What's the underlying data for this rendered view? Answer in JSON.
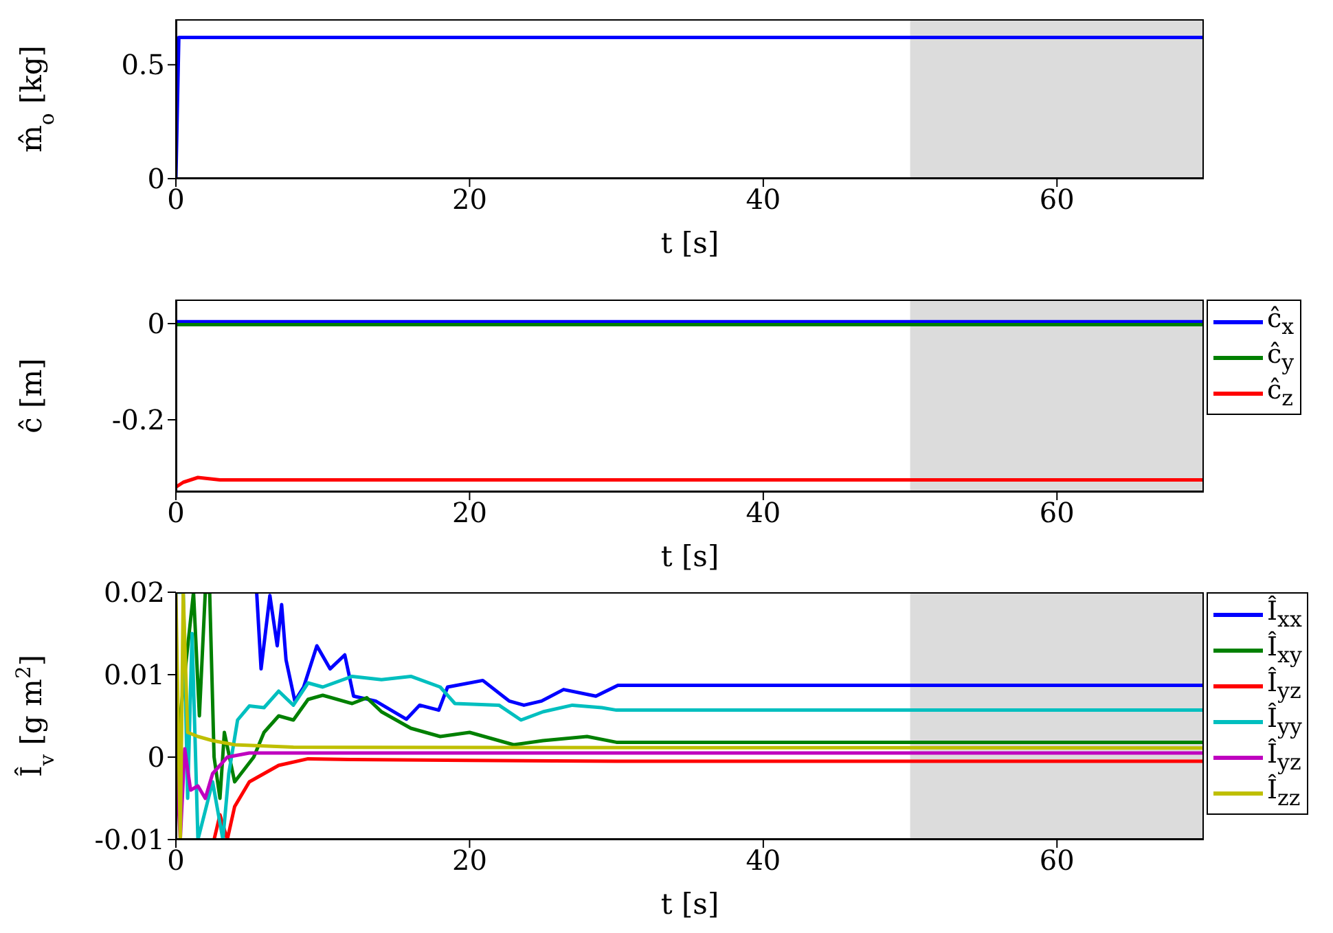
{
  "chart_data": [
    {
      "type": "line",
      "ylabel": "m̂$_{o}$ [kg]",
      "xlabel": "t [s]",
      "xlim": [
        0,
        70
      ],
      "xticks": [
        0,
        20,
        40,
        60
      ],
      "ylim": [
        0,
        0.7
      ],
      "yticks": [
        0,
        0.5
      ],
      "legend": false,
      "bands": [
        {
          "axis": "x",
          "from": 50,
          "to": 70,
          "color": "#dcdcdc"
        }
      ],
      "series": [
        {
          "color": "#0000ff",
          "x": [
            0,
            0.2,
            0.5,
            1,
            2,
            70
          ],
          "values": [
            0,
            0.62,
            0.62,
            0.62,
            0.62,
            0.62
          ]
        }
      ]
    },
    {
      "type": "line",
      "ylabel": "ĉ [m]",
      "xlabel": "t [s]",
      "xlim": [
        0,
        70
      ],
      "xticks": [
        0,
        20,
        40,
        60
      ],
      "ylim": [
        -0.35,
        0.05
      ],
      "yticks": [
        -0.2,
        0
      ],
      "legend": "right",
      "bands": [
        {
          "axis": "x",
          "from": 50,
          "to": 70,
          "color": "#dcdcdc"
        }
      ],
      "series": [
        {
          "name": "ĉ$_{x}$",
          "color": "#0000ff",
          "x": [
            0,
            0.5,
            1,
            2,
            70
          ],
          "values": [
            0.004,
            0.004,
            0.004,
            0.004,
            0.004
          ]
        },
        {
          "name": "ĉ$_{y}$",
          "color": "#008000",
          "x": [
            0,
            0.5,
            1,
            2,
            70
          ],
          "values": [
            -0.002,
            -0.002,
            -0.002,
            -0.002,
            -0.002
          ]
        },
        {
          "name": "ĉ$_{z}$",
          "color": "#ff0000",
          "x": [
            0,
            0.5,
            1.5,
            3,
            70
          ],
          "values": [
            -0.34,
            -0.33,
            -0.32,
            -0.325,
            -0.325
          ]
        }
      ]
    },
    {
      "type": "line",
      "ylabel": "Î$_{v}$ [g m$^{2}$]",
      "xlabel": "t [s]",
      "xlim": [
        0,
        70
      ],
      "xticks": [
        0,
        20,
        40,
        60
      ],
      "ylim": [
        -0.01,
        0.02
      ],
      "yticks": [
        -0.01,
        0,
        0.01,
        0.02
      ],
      "legend": "right",
      "bands": [
        {
          "axis": "x",
          "from": 50,
          "to": 70,
          "color": "#dcdcdc"
        }
      ],
      "series": [
        {
          "name": "Î$_{xx}$",
          "color": "#0000ff",
          "x": [
            5.5,
            5.8,
            6.4,
            6.9,
            7.2,
            7.5,
            8.1,
            8.7,
            9.6,
            10.5,
            11.5,
            12.1,
            13.6,
            15.7,
            16.6,
            17.9,
            18.5,
            20.9,
            22.7,
            23.7,
            24.9,
            26.4,
            28.6,
            30.1,
            70
          ],
          "values": [
            0.02,
            0.0107,
            0.0196,
            0.0135,
            0.0185,
            0.0118,
            0.0068,
            0.0085,
            0.0135,
            0.0107,
            0.0124,
            0.0074,
            0.0068,
            0.0046,
            0.0063,
            0.0057,
            0.0085,
            0.0093,
            0.0068,
            0.0063,
            0.0068,
            0.0082,
            0.0074,
            0.0087,
            0.0087
          ]
        },
        {
          "name": "Î$_{xy}$",
          "color": "#008000",
          "x": [
            0,
            1.2,
            1.6,
            2,
            2.3,
            2.6,
            3,
            3.3,
            4,
            5.3,
            6,
            7,
            8,
            9,
            10,
            12,
            13,
            14,
            16,
            18,
            20,
            23,
            25,
            28,
            30,
            70
          ],
          "values": [
            0,
            0.02,
            0.005,
            0.02,
            0.02,
            0,
            -0.005,
            0.003,
            -0.003,
            0,
            0.003,
            0.005,
            0.0045,
            0.007,
            0.0075,
            0.0065,
            0.0072,
            0.0055,
            0.0035,
            0.0025,
            0.003,
            0.0015,
            0.002,
            0.0025,
            0.0018,
            0.0018
          ]
        },
        {
          "name": "Î$_{yz}$",
          "color": "#ff0000",
          "x": [
            2.6,
            3,
            3.5,
            4,
            5,
            6,
            7,
            9,
            12,
            20,
            30,
            70
          ],
          "values": [
            -0.01,
            -0.007,
            -0.01,
            -0.006,
            -0.003,
            -0.002,
            -0.001,
            -0.0002,
            -0.0003,
            -0.0004,
            -0.0005,
            -0.0005
          ]
        },
        {
          "name": "Î$_{yy}$",
          "color": "#00bfbf",
          "x": [
            0,
            0.5,
            0.8,
            1.1,
            1.5,
            2.5,
            3.2,
            3.6,
            4.2,
            5,
            6,
            7,
            8,
            9,
            10,
            12,
            14,
            16,
            18,
            19,
            22,
            23.5,
            25,
            27,
            29,
            30,
            70
          ],
          "values": [
            0.02,
            0.02,
            -0.005,
            0.015,
            -0.01,
            -0.003,
            -0.01,
            -0.002,
            0.0045,
            0.0062,
            0.006,
            0.008,
            0.0063,
            0.009,
            0.0085,
            0.0098,
            0.0094,
            0.0098,
            0.0085,
            0.0065,
            0.0063,
            0.0045,
            0.0055,
            0.0063,
            0.006,
            0.0057,
            0.0057
          ]
        },
        {
          "name": "Î$_{yz}$",
          "color": "#bf00bf",
          "x": [
            0,
            0.3,
            0.6,
            1,
            1.5,
            2,
            2.5,
            3,
            3.5,
            5,
            10,
            70
          ],
          "values": [
            0,
            -0.01,
            0.001,
            -0.004,
            -0.0035,
            -0.005,
            -0.002,
            -0.001,
            0,
            0.0005,
            0.0005,
            0.0005
          ]
        },
        {
          "name": "Î$_{zz}$",
          "color": "#bfbf00",
          "x": [
            0,
            0.3,
            0.5,
            0.8,
            1.5,
            2.5,
            4,
            8,
            70
          ],
          "values": [
            0.02,
            -0.01,
            0.02,
            0.003,
            0.0025,
            0.002,
            0.0015,
            0.0012,
            0.0011
          ]
        }
      ]
    }
  ]
}
